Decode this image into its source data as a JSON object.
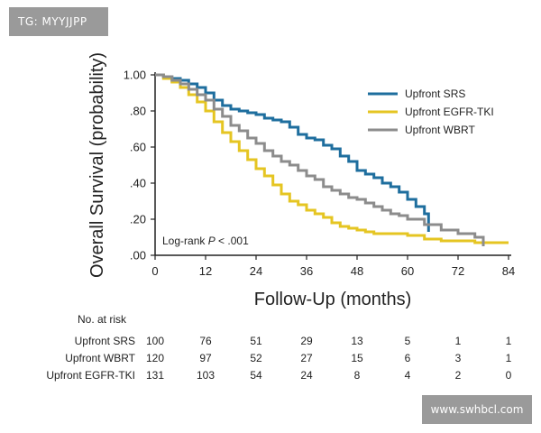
{
  "watermarks": {
    "top_left": "TG: MYYJJPP",
    "bottom_right": "www.swhbcl.com"
  },
  "chart_data": {
    "type": "line",
    "xlabel": "Follow-Up (months)",
    "ylabel": "Overall Survival (probability)",
    "xlim": [
      0,
      84
    ],
    "ylim": [
      0,
      1
    ],
    "x_ticks": [
      "0",
      "12",
      "24",
      "36",
      "48",
      "60",
      "72",
      "84"
    ],
    "x_tick_values": [
      0,
      12,
      24,
      36,
      48,
      60,
      72,
      84
    ],
    "y_ticks": [
      "1.00",
      ".80",
      ".60",
      ".40",
      ".20",
      ".00"
    ],
    "y_tick_values": [
      1.0,
      0.8,
      0.6,
      0.4,
      0.2,
      0.0
    ],
    "annotation": {
      "prefix": "Log-rank ",
      "p": "P",
      "suffix": " < .001"
    },
    "legend_position": "top-right",
    "series": [
      {
        "name": "Upfront SRS",
        "color": "#1e6e9e",
        "x": [
          0,
          2,
          4,
          6,
          8,
          10,
          12,
          14,
          16,
          18,
          20,
          22,
          24,
          26,
          28,
          30,
          32,
          34,
          36,
          38,
          40,
          42,
          44,
          46,
          48,
          50,
          52,
          54,
          56,
          58,
          60,
          62,
          64,
          65
        ],
        "y": [
          1.0,
          0.99,
          0.98,
          0.97,
          0.95,
          0.93,
          0.9,
          0.86,
          0.83,
          0.81,
          0.8,
          0.79,
          0.78,
          0.76,
          0.75,
          0.74,
          0.71,
          0.67,
          0.65,
          0.64,
          0.61,
          0.59,
          0.55,
          0.52,
          0.47,
          0.45,
          0.43,
          0.4,
          0.38,
          0.35,
          0.31,
          0.27,
          0.23,
          0.13
        ]
      },
      {
        "name": "Upfront EGFR-TKI",
        "color": "#e5c522",
        "x": [
          0,
          2,
          4,
          6,
          8,
          10,
          12,
          14,
          16,
          18,
          20,
          22,
          24,
          26,
          28,
          30,
          32,
          34,
          36,
          38,
          40,
          42,
          44,
          46,
          48,
          50,
          52,
          54,
          56,
          60,
          64,
          68,
          72,
          76,
          80,
          84
        ],
        "y": [
          1.0,
          0.98,
          0.96,
          0.93,
          0.89,
          0.85,
          0.8,
          0.74,
          0.68,
          0.63,
          0.58,
          0.53,
          0.48,
          0.44,
          0.39,
          0.34,
          0.3,
          0.28,
          0.25,
          0.23,
          0.21,
          0.18,
          0.16,
          0.15,
          0.14,
          0.13,
          0.12,
          0.12,
          0.12,
          0.11,
          0.09,
          0.08,
          0.08,
          0.07,
          0.07,
          0.07
        ]
      },
      {
        "name": "Upfront WBRT",
        "color": "#8c8c8c",
        "x": [
          0,
          2,
          4,
          6,
          8,
          10,
          12,
          14,
          16,
          18,
          20,
          22,
          24,
          26,
          28,
          30,
          32,
          34,
          36,
          38,
          40,
          42,
          44,
          46,
          48,
          50,
          52,
          54,
          56,
          58,
          60,
          64,
          68,
          72,
          76,
          78
        ],
        "y": [
          1.0,
          0.99,
          0.97,
          0.95,
          0.92,
          0.89,
          0.86,
          0.81,
          0.77,
          0.72,
          0.69,
          0.65,
          0.62,
          0.58,
          0.55,
          0.52,
          0.5,
          0.47,
          0.44,
          0.42,
          0.38,
          0.36,
          0.34,
          0.32,
          0.31,
          0.29,
          0.27,
          0.25,
          0.23,
          0.22,
          0.2,
          0.17,
          0.14,
          0.12,
          0.1,
          0.05
        ]
      }
    ],
    "risk_table": {
      "title": "No. at risk",
      "rows": [
        {
          "label": "Upfront SRS",
          "values": [
            "100",
            "76",
            "51",
            "29",
            "13",
            "5",
            "1",
            "1"
          ]
        },
        {
          "label": "Upfront WBRT",
          "values": [
            "120",
            "97",
            "52",
            "27",
            "15",
            "6",
            "3",
            "1"
          ]
        },
        {
          "label": "Upfront EGFR-TKI",
          "values": [
            "131",
            "103",
            "54",
            "24",
            "8",
            "4",
            "2",
            "0"
          ]
        }
      ]
    }
  }
}
